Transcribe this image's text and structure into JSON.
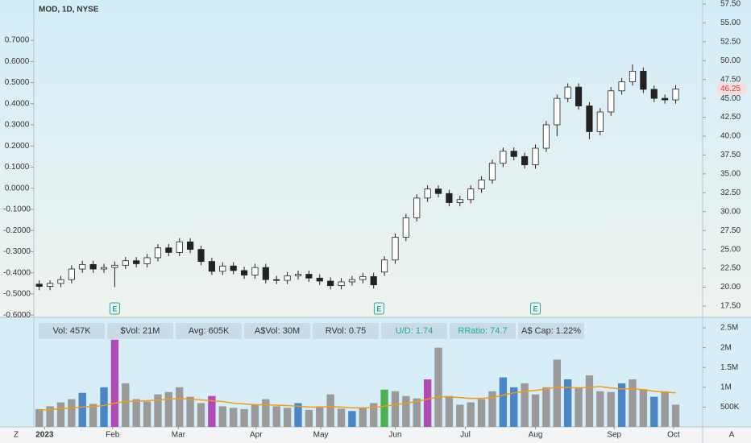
{
  "chart_data": {
    "type": "candlestick",
    "title": "MOD, 1D, NYSE",
    "up_color": "#ffffff",
    "down_color": "#222222",
    "open": [
      20.4,
      20.1,
      20.5,
      21.0,
      22.4,
      23.0,
      22.4,
      22.6,
      22.9,
      23.5,
      23.1,
      23.9,
      25.2,
      24.6,
      26.0,
      25.0,
      23.4,
      22.1,
      22.8,
      22.2,
      21.6,
      22.6,
      21.0,
      20.9,
      21.5,
      21.7,
      21.2,
      20.8,
      20.2,
      20.7,
      21.0,
      21.4,
      22.0,
      23.6,
      26.6,
      29.2,
      31.8,
      33.0,
      32.4,
      31.2,
      31.6,
      33.0,
      34.2,
      36.4,
      38.0,
      37.3,
      36.2,
      38.4,
      41.5,
      45.0,
      46.5,
      44.0,
      40.6,
      43.2,
      46.0,
      47.2,
      48.6,
      46.2,
      45.0,
      44.8
    ],
    "high": [
      20.9,
      20.9,
      21.5,
      22.9,
      23.5,
      23.5,
      23.1,
      23.4,
      24.0,
      24.0,
      24.4,
      25.7,
      25.7,
      26.5,
      26.5,
      25.5,
      23.9,
      23.3,
      23.3,
      22.7,
      23.1,
      23.1,
      21.5,
      22.0,
      22.2,
      22.2,
      21.7,
      21.3,
      21.2,
      21.5,
      21.9,
      21.9,
      24.1,
      27.1,
      29.7,
      32.3,
      33.5,
      33.5,
      32.9,
      32.1,
      33.5,
      34.7,
      36.9,
      38.5,
      38.5,
      37.8,
      38.9,
      42.0,
      45.5,
      47.0,
      47.0,
      44.5,
      43.7,
      46.5,
      47.7,
      49.5,
      49.1,
      46.7,
      45.5,
      46.75
    ],
    "low": [
      19.6,
      19.6,
      20.0,
      20.5,
      21.9,
      21.9,
      21.9,
      20.0,
      22.4,
      22.6,
      22.6,
      23.4,
      24.1,
      24.1,
      24.5,
      22.9,
      21.6,
      21.6,
      21.7,
      21.1,
      21.1,
      20.5,
      20.4,
      20.4,
      21.0,
      20.7,
      20.3,
      19.7,
      19.7,
      20.2,
      20.5,
      19.8,
      21.5,
      23.1,
      26.1,
      28.7,
      31.3,
      31.9,
      30.7,
      30.7,
      31.1,
      32.5,
      33.7,
      35.9,
      36.8,
      35.7,
      35.7,
      37.9,
      40.0,
      44.5,
      43.5,
      39.6,
      40.1,
      42.7,
      45.5,
      46.7,
      45.7,
      44.5,
      44.3,
      44.3
    ],
    "close": [
      20.1,
      20.5,
      21.0,
      22.4,
      23.0,
      22.4,
      22.6,
      22.9,
      23.5,
      23.1,
      23.9,
      25.2,
      24.6,
      26.0,
      25.0,
      23.4,
      22.1,
      22.8,
      22.2,
      21.6,
      22.6,
      21.0,
      20.9,
      21.5,
      21.7,
      21.2,
      20.8,
      20.2,
      20.7,
      21.0,
      21.4,
      20.3,
      23.6,
      26.6,
      29.2,
      31.8,
      33.0,
      32.4,
      31.2,
      31.6,
      33.0,
      34.2,
      36.4,
      38.0,
      37.3,
      36.2,
      38.4,
      41.5,
      45.0,
      46.5,
      44.0,
      40.6,
      43.2,
      46.0,
      47.2,
      48.6,
      46.2,
      45.0,
      44.8,
      46.25
    ],
    "xlim": [
      -0.5,
      61.5
    ],
    "xticks": [
      {
        "value": 0.5,
        "label": "2023"
      },
      {
        "value": 6.8,
        "label": "Feb"
      },
      {
        "value": 12.9,
        "label": "Mar"
      },
      {
        "value": 20.1,
        "label": "Apr"
      },
      {
        "value": 26.1,
        "label": "May"
      },
      {
        "value": 33.0,
        "label": "Jun"
      },
      {
        "value": 39.5,
        "label": "Jul"
      },
      {
        "value": 46.0,
        "label": "Aug"
      },
      {
        "value": 53.3,
        "label": "Sep"
      },
      {
        "value": 58.8,
        "label": "Oct"
      }
    ],
    "ylim": [
      16.0,
      58.03
    ],
    "yticks": [
      {
        "value": 57.5,
        "label": "57.50"
      },
      {
        "value": 55,
        "label": "55.00"
      },
      {
        "value": 52.5,
        "label": "52.50"
      },
      {
        "value": 50,
        "label": "50.00"
      },
      {
        "value": 47.5,
        "label": "47.50"
      },
      {
        "value": 45,
        "label": "45.00"
      },
      {
        "value": 42.5,
        "label": "42.50"
      },
      {
        "value": 40,
        "label": "40.00"
      },
      {
        "value": 37.5,
        "label": "37.50"
      },
      {
        "value": 35,
        "label": "35.00"
      },
      {
        "value": 32.5,
        "label": "32.50"
      },
      {
        "value": 30,
        "label": "30.00"
      },
      {
        "value": 27.5,
        "label": "27.50"
      },
      {
        "value": 25,
        "label": "25.00"
      },
      {
        "value": 22.5,
        "label": "22.50"
      },
      {
        "value": 20,
        "label": "20.00"
      },
      {
        "value": 17.5,
        "label": "17.50"
      }
    ],
    "left_ylim": [
      -0.611,
      0.891
    ],
    "left_yticks": [
      {
        "value": 0.7,
        "label": "0.7000"
      },
      {
        "value": 0.6,
        "label": "0.6000"
      },
      {
        "value": 0.5,
        "label": "0.5000"
      },
      {
        "value": 0.4,
        "label": "0.4000"
      },
      {
        "value": 0.3,
        "label": "0.3000"
      },
      {
        "value": 0.2,
        "label": "0.2000"
      },
      {
        "value": 0.1,
        "label": "0.1000"
      },
      {
        "value": 0,
        "label": "0.0000"
      },
      {
        "value": -0.1,
        "label": "-0.1000"
      },
      {
        "value": -0.2,
        "label": "-0.2000"
      },
      {
        "value": -0.3,
        "label": "-0.3000"
      },
      {
        "value": -0.4,
        "label": "-0.4000"
      },
      {
        "value": -0.5,
        "label": "-0.5000"
      },
      {
        "value": -0.6,
        "label": "-0.6000"
      }
    ],
    "earnings": {
      "label": "E",
      "x": [
        7,
        31.5,
        46
      ]
    },
    "volume": {
      "type": "bar",
      "ylim": [
        0,
        2765000
      ],
      "yticks": [
        {
          "value": 500000,
          "label": "500K"
        },
        {
          "value": 1000000,
          "label": "1M"
        },
        {
          "value": 1500000,
          "label": "1.5M"
        },
        {
          "value": 2000000,
          "label": "2M"
        },
        {
          "value": 2500000,
          "label": "2.5M"
        }
      ],
      "values": [
        450000,
        520000,
        620000,
        700000,
        860000,
        580000,
        1000000,
        2200000,
        1100000,
        700000,
        640000,
        820000,
        880000,
        1000000,
        760000,
        600000,
        780000,
        520000,
        480000,
        450000,
        560000,
        700000,
        520000,
        480000,
        600000,
        430000,
        520000,
        820000,
        460000,
        400000,
        480000,
        600000,
        940000,
        900000,
        780000,
        720000,
        1200000,
        2000000,
        780000,
        560000,
        620000,
        700000,
        900000,
        1250000,
        1000000,
        1100000,
        820000,
        1000000,
        1700000,
        1200000,
        1000000,
        1300000,
        900000,
        880000,
        1100000,
        1200000,
        950000,
        760000,
        900000,
        560000
      ],
      "colors": [
        "#9a9a9a",
        "#9a9a9a",
        "#9a9a9a",
        "#9a9a9a",
        "#4a86c5",
        "#9a9a9a",
        "#4a86c5",
        "#b04ab5",
        "#9a9a9a",
        "#9a9a9a",
        "#9a9a9a",
        "#9a9a9a",
        "#9a9a9a",
        "#9a9a9a",
        "#9a9a9a",
        "#9a9a9a",
        "#b04ab5",
        "#9a9a9a",
        "#9a9a9a",
        "#9a9a9a",
        "#9a9a9a",
        "#9a9a9a",
        "#9a9a9a",
        "#9a9a9a",
        "#4a86c5",
        "#9a9a9a",
        "#9a9a9a",
        "#9a9a9a",
        "#9a9a9a",
        "#4a86c5",
        "#9a9a9a",
        "#9a9a9a",
        "#4caf50",
        "#9a9a9a",
        "#9a9a9a",
        "#9a9a9a",
        "#b04ab5",
        "#9a9a9a",
        "#9a9a9a",
        "#9a9a9a",
        "#9a9a9a",
        "#9a9a9a",
        "#9a9a9a",
        "#4a86c5",
        "#4a86c5",
        "#9a9a9a",
        "#9a9a9a",
        "#9a9a9a",
        "#9a9a9a",
        "#4a86c5",
        "#9a9a9a",
        "#9a9a9a",
        "#9a9a9a",
        "#9a9a9a",
        "#4a86c5",
        "#9a9a9a",
        "#9a9a9a",
        "#4a86c5",
        "#9a9a9a",
        "#9a9a9a"
      ],
      "average": {
        "color": "#f39c12",
        "values": [
          420000,
          440000,
          460000,
          480000,
          500000,
          510000,
          540000,
          600000,
          640000,
          650000,
          660000,
          680000,
          700000,
          720000,
          700000,
          680000,
          660000,
          640000,
          600000,
          580000,
          560000,
          560000,
          550000,
          540000,
          520000,
          500000,
          500000,
          510000,
          500000,
          480000,
          480000,
          490000,
          520000,
          560000,
          600000,
          640000,
          700000,
          760000,
          760000,
          740000,
          720000,
          720000,
          740000,
          800000,
          860000,
          900000,
          920000,
          960000,
          1000000,
          1000000,
          980000,
          1000000,
          1020000,
          980000,
          960000,
          960000,
          940000,
          900000,
          880000,
          860000
        ]
      }
    },
    "stats": [
      "Vol: 457K",
      "$Vol: 21M",
      "Avg: 605K",
      "A$Vol: 30M",
      "RVol: 0.75",
      "U/D: 1.74",
      "RRatio: 74.7",
      "A$ Cap: 1.22%"
    ],
    "left_corner": "Z",
    "right_corner": "A"
  }
}
